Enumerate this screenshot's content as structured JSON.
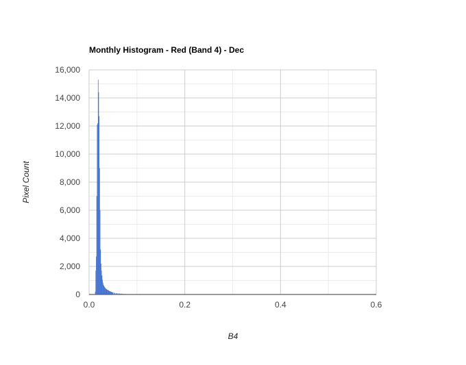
{
  "chart_data": {
    "type": "bar",
    "title": "Monthly Histogram - Red (Band 4) - Dec",
    "xlabel": "B4",
    "ylabel": "Pixel Count",
    "xlim": [
      0,
      0.6
    ],
    "ylim": [
      0,
      16000
    ],
    "x_ticks": [
      "0.0",
      "0.2",
      "0.4",
      "0.6"
    ],
    "y_ticks": [
      "0",
      "2,000",
      "4,000",
      "6,000",
      "8,000",
      "10,000",
      "12,000",
      "14,000",
      "16,000"
    ],
    "grid": true,
    "legend": "none",
    "bar_color": "#3366cc",
    "bin_width": 0.001,
    "series": [
      {
        "x": [
          0.013,
          0.014,
          0.015,
          0.016,
          0.017,
          0.018,
          0.019,
          0.02,
          0.021,
          0.022,
          0.023,
          0.024,
          0.025,
          0.026,
          0.027,
          0.028,
          0.029,
          0.03,
          0.031,
          0.032,
          0.033,
          0.034,
          0.035,
          0.036,
          0.037,
          0.038,
          0.039,
          0.04,
          0.041,
          0.042,
          0.043,
          0.044,
          0.045,
          0.046,
          0.047,
          0.048,
          0.049,
          0.05,
          0.052,
          0.054,
          0.056,
          0.058,
          0.06,
          0.062,
          0.064,
          0.066,
          0.068,
          0.07,
          0.073,
          0.076,
          0.08,
          0.085,
          0.09,
          0.095,
          0.1,
          0.11,
          0.12,
          0.13,
          0.14,
          0.15,
          0.17,
          0.2,
          0.25,
          0.3,
          0.4,
          0.5,
          0.58
        ],
        "values": [
          200,
          1700,
          2700,
          7000,
          12100,
          12200,
          15300,
          14400,
          12700,
          9000,
          6000,
          3200,
          2200,
          1700,
          1350,
          1050,
          850,
          700,
          620,
          560,
          500,
          460,
          420,
          390,
          360,
          340,
          320,
          300,
          280,
          260,
          240,
          220,
          205,
          190,
          175,
          160,
          150,
          140,
          125,
          115,
          105,
          95,
          85,
          78,
          70,
          64,
          58,
          52,
          46,
          40,
          34,
          28,
          23,
          19,
          16,
          12,
          9,
          7,
          6,
          5,
          4,
          3,
          2,
          2,
          1,
          1,
          1
        ]
      }
    ]
  }
}
